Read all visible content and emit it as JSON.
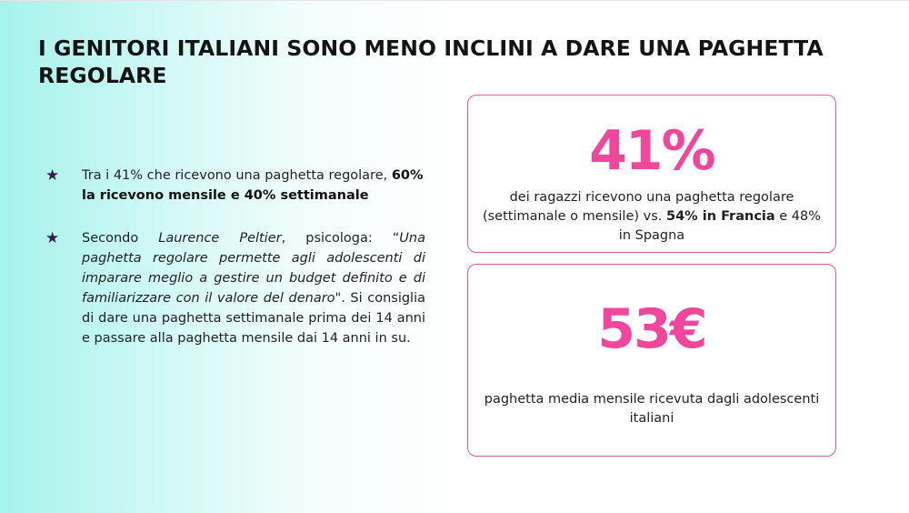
{
  "title": "I GENITORI ITALIANI SONO MENO INCLINI A DARE UNA PAGHETTA REGOLARE",
  "bullets": [
    {
      "icon": "star-icon",
      "a": "Tra i 41% che ricevono una paghetta regolare, ",
      "b": "60% la ricevono mensile e 40% settimanale"
    },
    {
      "icon": "star-icon",
      "a": "Secondo ",
      "author": "Laurence Peltier",
      "b": ", psicologa: “",
      "quote": "Una paghetta regolare permette agli adolescenti di imparare meglio a gestire un budget definito e di familiarizzare con il valore del denaro\"",
      "c": ". Si consiglia di dare una paghetta settimanale prima dei 14 anni e passare alla paghetta mensile dai 14 anni in su."
    }
  ],
  "cards": [
    {
      "value": "41%",
      "desc_a": "dei ragazzi ricevono una paghetta regolare (settimanale o mensile) vs. ",
      "desc_b": "54% in Francia",
      "desc_c": " e 48% in Spagna"
    },
    {
      "value": "53€",
      "desc": "paghetta media mensile ricevuta dagli adolescenti italiani"
    }
  ],
  "colors": {
    "accent": "#f0479d",
    "border": "#e7589e",
    "star": "#3a1d4e",
    "gradient": "#a6f2ec"
  }
}
